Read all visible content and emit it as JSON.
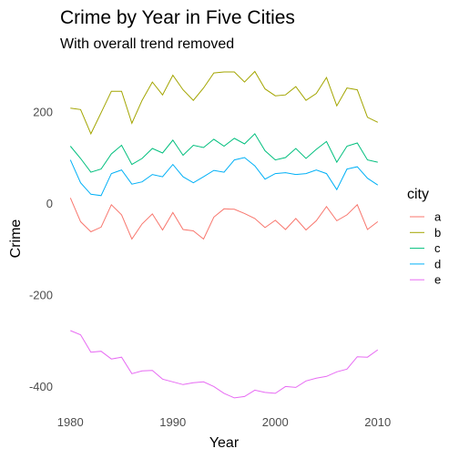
{
  "chart_data": {
    "type": "line",
    "title": "Crime by Year in Five Cities",
    "subtitle": "With overall trend removed",
    "xlabel": "Year",
    "ylabel": "Crime",
    "xlim": [
      1979,
      2011
    ],
    "ylim": [
      -455,
      305
    ],
    "x_ticks": [
      1980,
      1990,
      2000,
      2010
    ],
    "y_ticks": [
      -400,
      -200,
      0,
      200
    ],
    "grid": false,
    "legend": {
      "title": "city",
      "position": "right"
    },
    "x": [
      1980,
      1981,
      1982,
      1983,
      1984,
      1985,
      1986,
      1987,
      1988,
      1989,
      1990,
      1991,
      1992,
      1993,
      1994,
      1995,
      1996,
      1997,
      1998,
      1999,
      2000,
      2001,
      2002,
      2003,
      2004,
      2005,
      2006,
      2007,
      2008,
      2009,
      2010
    ],
    "series": [
      {
        "name": "a",
        "color": "#F8766D",
        "values": [
          12,
          -40,
          -62,
          -52,
          -3,
          -25,
          -78,
          -45,
          -23,
          -58,
          -20,
          -57,
          -60,
          -78,
          -30,
          -12,
          -13,
          -22,
          -33,
          -53,
          -37,
          -57,
          -33,
          -58,
          -38,
          -7,
          -38,
          -25,
          -3,
          -57,
          -40
        ]
      },
      {
        "name": "b",
        "color": "#A3A500",
        "values": [
          208,
          205,
          152,
          198,
          245,
          245,
          175,
          225,
          265,
          237,
          280,
          248,
          225,
          252,
          285,
          287,
          287,
          265,
          288,
          250,
          235,
          237,
          255,
          225,
          240,
          275,
          213,
          252,
          248,
          188,
          177
        ]
      },
      {
        "name": "c",
        "color": "#00BF7D",
        "values": [
          125,
          98,
          68,
          75,
          108,
          127,
          85,
          98,
          120,
          110,
          138,
          105,
          127,
          122,
          140,
          125,
          142,
          130,
          152,
          115,
          95,
          100,
          120,
          98,
          118,
          135,
          90,
          125,
          132,
          95,
          90
        ]
      },
      {
        "name": "d",
        "color": "#00B0F6",
        "values": [
          95,
          45,
          20,
          17,
          65,
          73,
          42,
          47,
          63,
          58,
          85,
          58,
          45,
          58,
          72,
          68,
          95,
          100,
          82,
          53,
          65,
          67,
          63,
          65,
          73,
          65,
          30,
          75,
          80,
          55,
          40
        ]
      },
      {
        "name": "e",
        "color": "#E76BF3",
        "values": [
          -278,
          -287,
          -325,
          -323,
          -340,
          -336,
          -372,
          -366,
          -365,
          -384,
          -390,
          -396,
          -392,
          -390,
          -400,
          -415,
          -425,
          -422,
          -408,
          -413,
          -415,
          -400,
          -402,
          -388,
          -382,
          -378,
          -368,
          -362,
          -335,
          -336,
          -320
        ]
      }
    ]
  }
}
